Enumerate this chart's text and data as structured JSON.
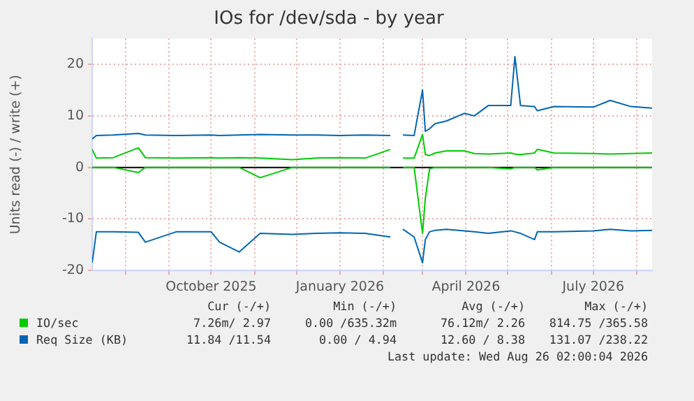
{
  "chart_data": {
    "type": "line",
    "title": "IOs for /dev/sda - by year",
    "ylabel": "Units read (-) / write (+)",
    "x": [
      "2025-07-08",
      "2025-07-11",
      "2025-07-23",
      "2025-08-10",
      "2025-08-15",
      "2025-09-06",
      "2025-10-01",
      "2025-10-07",
      "2025-10-21",
      "2025-11-05",
      "2025-11-28",
      "2025-12-15",
      "2026-01-01",
      "2026-01-19",
      "2026-02-06",
      "2026-02-10",
      "2026-02-15",
      "2026-02-23",
      "2026-03-01",
      "2026-03-03",
      "2026-03-06",
      "2026-03-10",
      "2026-03-18",
      "2026-03-31",
      "2026-04-07",
      "2026-04-17",
      "2026-05-03",
      "2026-05-06",
      "2026-05-10",
      "2026-05-20",
      "2026-05-22",
      "2026-06-03",
      "2026-07-01",
      "2026-07-13",
      "2026-07-28",
      "2026-08-12"
    ],
    "series": [
      {
        "name": "IO/sec",
        "color": "#00cc00",
        "values": [
          3.5,
          1.8,
          1.9,
          3.8,
          1.9,
          1.8,
          1.9,
          1.8,
          1.9,
          1.8,
          1.5,
          1.8,
          1.9,
          1.8,
          3.5,
          null,
          1.8,
          1.8,
          6.4,
          2.5,
          2.3,
          2.8,
          3.2,
          3.2,
          2.7,
          2.6,
          2.8,
          2.6,
          2.5,
          2.8,
          3.5,
          2.8,
          2.7,
          2.6,
          2.7,
          2.8
        ]
      },
      {
        "color": "#00cc00",
        "values": [
          0,
          0,
          0,
          -1,
          0,
          0,
          0,
          0,
          0,
          -2,
          0,
          0,
          0,
          0,
          0,
          null,
          0,
          0,
          -12.8,
          -6,
          -0.3,
          0,
          0,
          0,
          0,
          0,
          -0.3,
          0,
          0,
          0,
          -0.5,
          0,
          0,
          0,
          0,
          0
        ]
      },
      {
        "name": "Req Size (KB)",
        "color": "#0066b3",
        "values": [
          5.5,
          6.2,
          6.3,
          6.6,
          6.3,
          6.2,
          6.3,
          6.2,
          6.3,
          6.4,
          6.3,
          6.3,
          6.2,
          6.3,
          6.2,
          null,
          6.3,
          6.2,
          15,
          7,
          7.5,
          8.5,
          9,
          10.5,
          10,
          12,
          12,
          21.5,
          12,
          11.8,
          11,
          11.8,
          11.7,
          13,
          11.8,
          11.5
        ]
      },
      {
        "color": "#0066b3",
        "values": [
          -18.5,
          -12.5,
          -12.5,
          -12.6,
          -14.5,
          -12.5,
          -12.5,
          -14.5,
          -16.4,
          -12.8,
          -13,
          -12.8,
          -12.7,
          -12.8,
          -13.5,
          null,
          -12,
          -13.5,
          -18.5,
          -14,
          -12.5,
          -12.2,
          -12,
          -12.3,
          -12.5,
          -12.8,
          -12.3,
          -12.5,
          -12.8,
          -14,
          -12.5,
          -12.5,
          -12.3,
          -12,
          -12.3,
          -12.2
        ]
      }
    ],
    "xlim": [
      "2025-07-08",
      "2026-08-12"
    ],
    "xticks": [
      {
        "value": "2025-08-01",
        "label": null
      },
      {
        "value": "2025-09-01",
        "label": null
      },
      {
        "value": "2025-10-01",
        "label": "October 2025"
      },
      {
        "value": "2025-11-01",
        "label": null
      },
      {
        "value": "2025-12-01",
        "label": null
      },
      {
        "value": "2026-01-01",
        "label": "January 2026"
      },
      {
        "value": "2026-02-01",
        "label": null
      },
      {
        "value": "2026-03-01",
        "label": null
      },
      {
        "value": "2026-04-01",
        "label": "April 2026"
      },
      {
        "value": "2026-05-01",
        "label": null
      },
      {
        "value": "2026-06-01",
        "label": null
      },
      {
        "value": "2026-07-01",
        "label": "July 2026"
      },
      {
        "value": "2026-08-01",
        "label": null
      }
    ],
    "ylim": [
      -20,
      25
    ],
    "yticks": [
      -20,
      -10,
      0,
      10,
      20
    ],
    "grid": true,
    "legend": "bottom left",
    "marker": "none",
    "line_style": "solid",
    "ref_lines": [
      {
        "axis": "y",
        "value": 0,
        "color": "#000000"
      }
    ],
    "annotations": [
      "Cur (-/+)",
      "Min (-/+)",
      "Avg (-/+)",
      "Max (-/+)",
      "7.26m/ 2.97",
      "0.00 /635.32m",
      "76.12m/ 2.26",
      "814.75 /365.58",
      "11.84 /11.54",
      "0.00 / 4.94",
      "12.60 / 8.38",
      "131.07 /238.22",
      "Last update: Wed Aug 26 02:00:04 2026"
    ]
  }
}
